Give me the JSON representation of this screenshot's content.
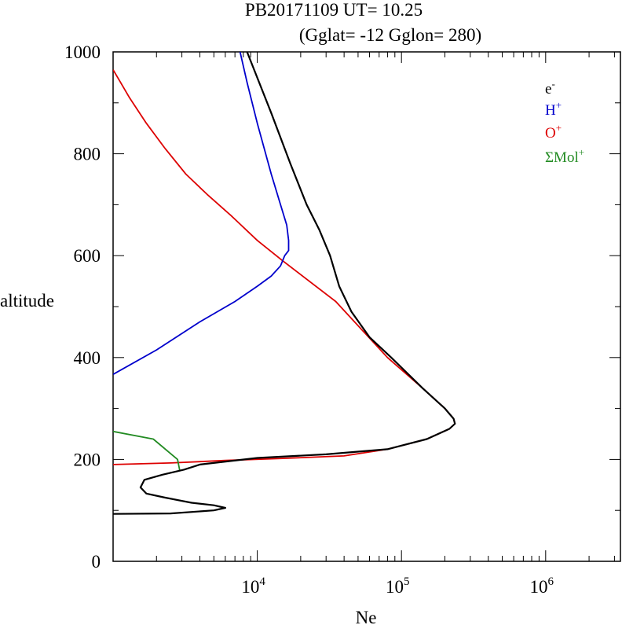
{
  "title_line1": "PB20171109   UT=  10.25",
  "title_line2": "(Gglat= -12   Gglon=  280)",
  "chart_data": {
    "type": "line",
    "xlabel": "Ne",
    "ylabel": "altitude",
    "xscale": "log",
    "xlim": [
      1000,
      3300000
    ],
    "ylim": [
      0,
      1000
    ],
    "y_ticks": [
      0,
      200,
      400,
      600,
      800,
      1000
    ],
    "x_ticks": [
      {
        "value": 10000,
        "base": "10",
        "exp": "4"
      },
      {
        "value": 100000,
        "base": "10",
        "exp": "5"
      },
      {
        "value": 1000000,
        "base": "10",
        "exp": "6"
      }
    ],
    "grid": false,
    "legend_position": "top-right",
    "series": [
      {
        "name": "e",
        "sup": "-",
        "color": "#000000",
        "points": [
          [
            1000,
            93
          ],
          [
            2500,
            94
          ],
          [
            5000,
            100
          ],
          [
            6000,
            105
          ],
          [
            5000,
            110
          ],
          [
            3500,
            115
          ],
          [
            2300,
            125
          ],
          [
            1700,
            133
          ],
          [
            1550,
            145
          ],
          [
            1650,
            160
          ],
          [
            2200,
            170
          ],
          [
            3100,
            180
          ],
          [
            4000,
            190
          ],
          [
            10000,
            203
          ],
          [
            30000,
            210
          ],
          [
            80000,
            220
          ],
          [
            150000,
            240
          ],
          [
            215000,
            260
          ],
          [
            235000,
            270
          ],
          [
            230000,
            280
          ],
          [
            200000,
            300
          ],
          [
            140000,
            340
          ],
          [
            85000,
            400
          ],
          [
            60000,
            440
          ],
          [
            45000,
            490
          ],
          [
            37000,
            540
          ],
          [
            32000,
            600
          ],
          [
            27000,
            650
          ],
          [
            22000,
            700
          ],
          [
            17000,
            780
          ],
          [
            12500,
            880
          ],
          [
            8500,
            1000
          ]
        ]
      },
      {
        "name": "H",
        "sup": "+",
        "color": "#0000cc",
        "points": [
          [
            1000,
            367
          ],
          [
            2000,
            415
          ],
          [
            4000,
            470
          ],
          [
            7000,
            510
          ],
          [
            10000,
            540
          ],
          [
            12500,
            560
          ],
          [
            14500,
            580
          ],
          [
            15500,
            600
          ],
          [
            16500,
            610
          ],
          [
            16500,
            630
          ],
          [
            16000,
            660
          ],
          [
            14500,
            700
          ],
          [
            12500,
            760
          ],
          [
            10000,
            860
          ],
          [
            8500,
            940
          ],
          [
            7600,
            1000
          ]
        ]
      },
      {
        "name": "O",
        "sup": "+",
        "color": "#dd0000",
        "points": [
          [
            1000,
            190
          ],
          [
            2500,
            193
          ],
          [
            6000,
            198
          ],
          [
            15000,
            202
          ],
          [
            40000,
            207
          ],
          [
            80000,
            220
          ],
          [
            150000,
            240
          ],
          [
            215000,
            260
          ],
          [
            235000,
            270
          ],
          [
            230000,
            280
          ],
          [
            200000,
            300
          ],
          [
            140000,
            340
          ],
          [
            80000,
            400
          ],
          [
            35000,
            510
          ],
          [
            15000,
            590
          ],
          [
            10000,
            630
          ],
          [
            6500,
            680
          ],
          [
            4500,
            720
          ],
          [
            3200,
            760
          ],
          [
            2300,
            810
          ],
          [
            1700,
            860
          ],
          [
            1300,
            910
          ],
          [
            1100,
            945
          ],
          [
            1000,
            965
          ]
        ]
      },
      {
        "name": "ΣMol",
        "sup": "+",
        "color": "#228b22",
        "points": [
          [
            1000,
            255
          ],
          [
            1900,
            240
          ],
          [
            2800,
            200
          ],
          [
            2900,
            178
          ]
        ]
      }
    ]
  }
}
